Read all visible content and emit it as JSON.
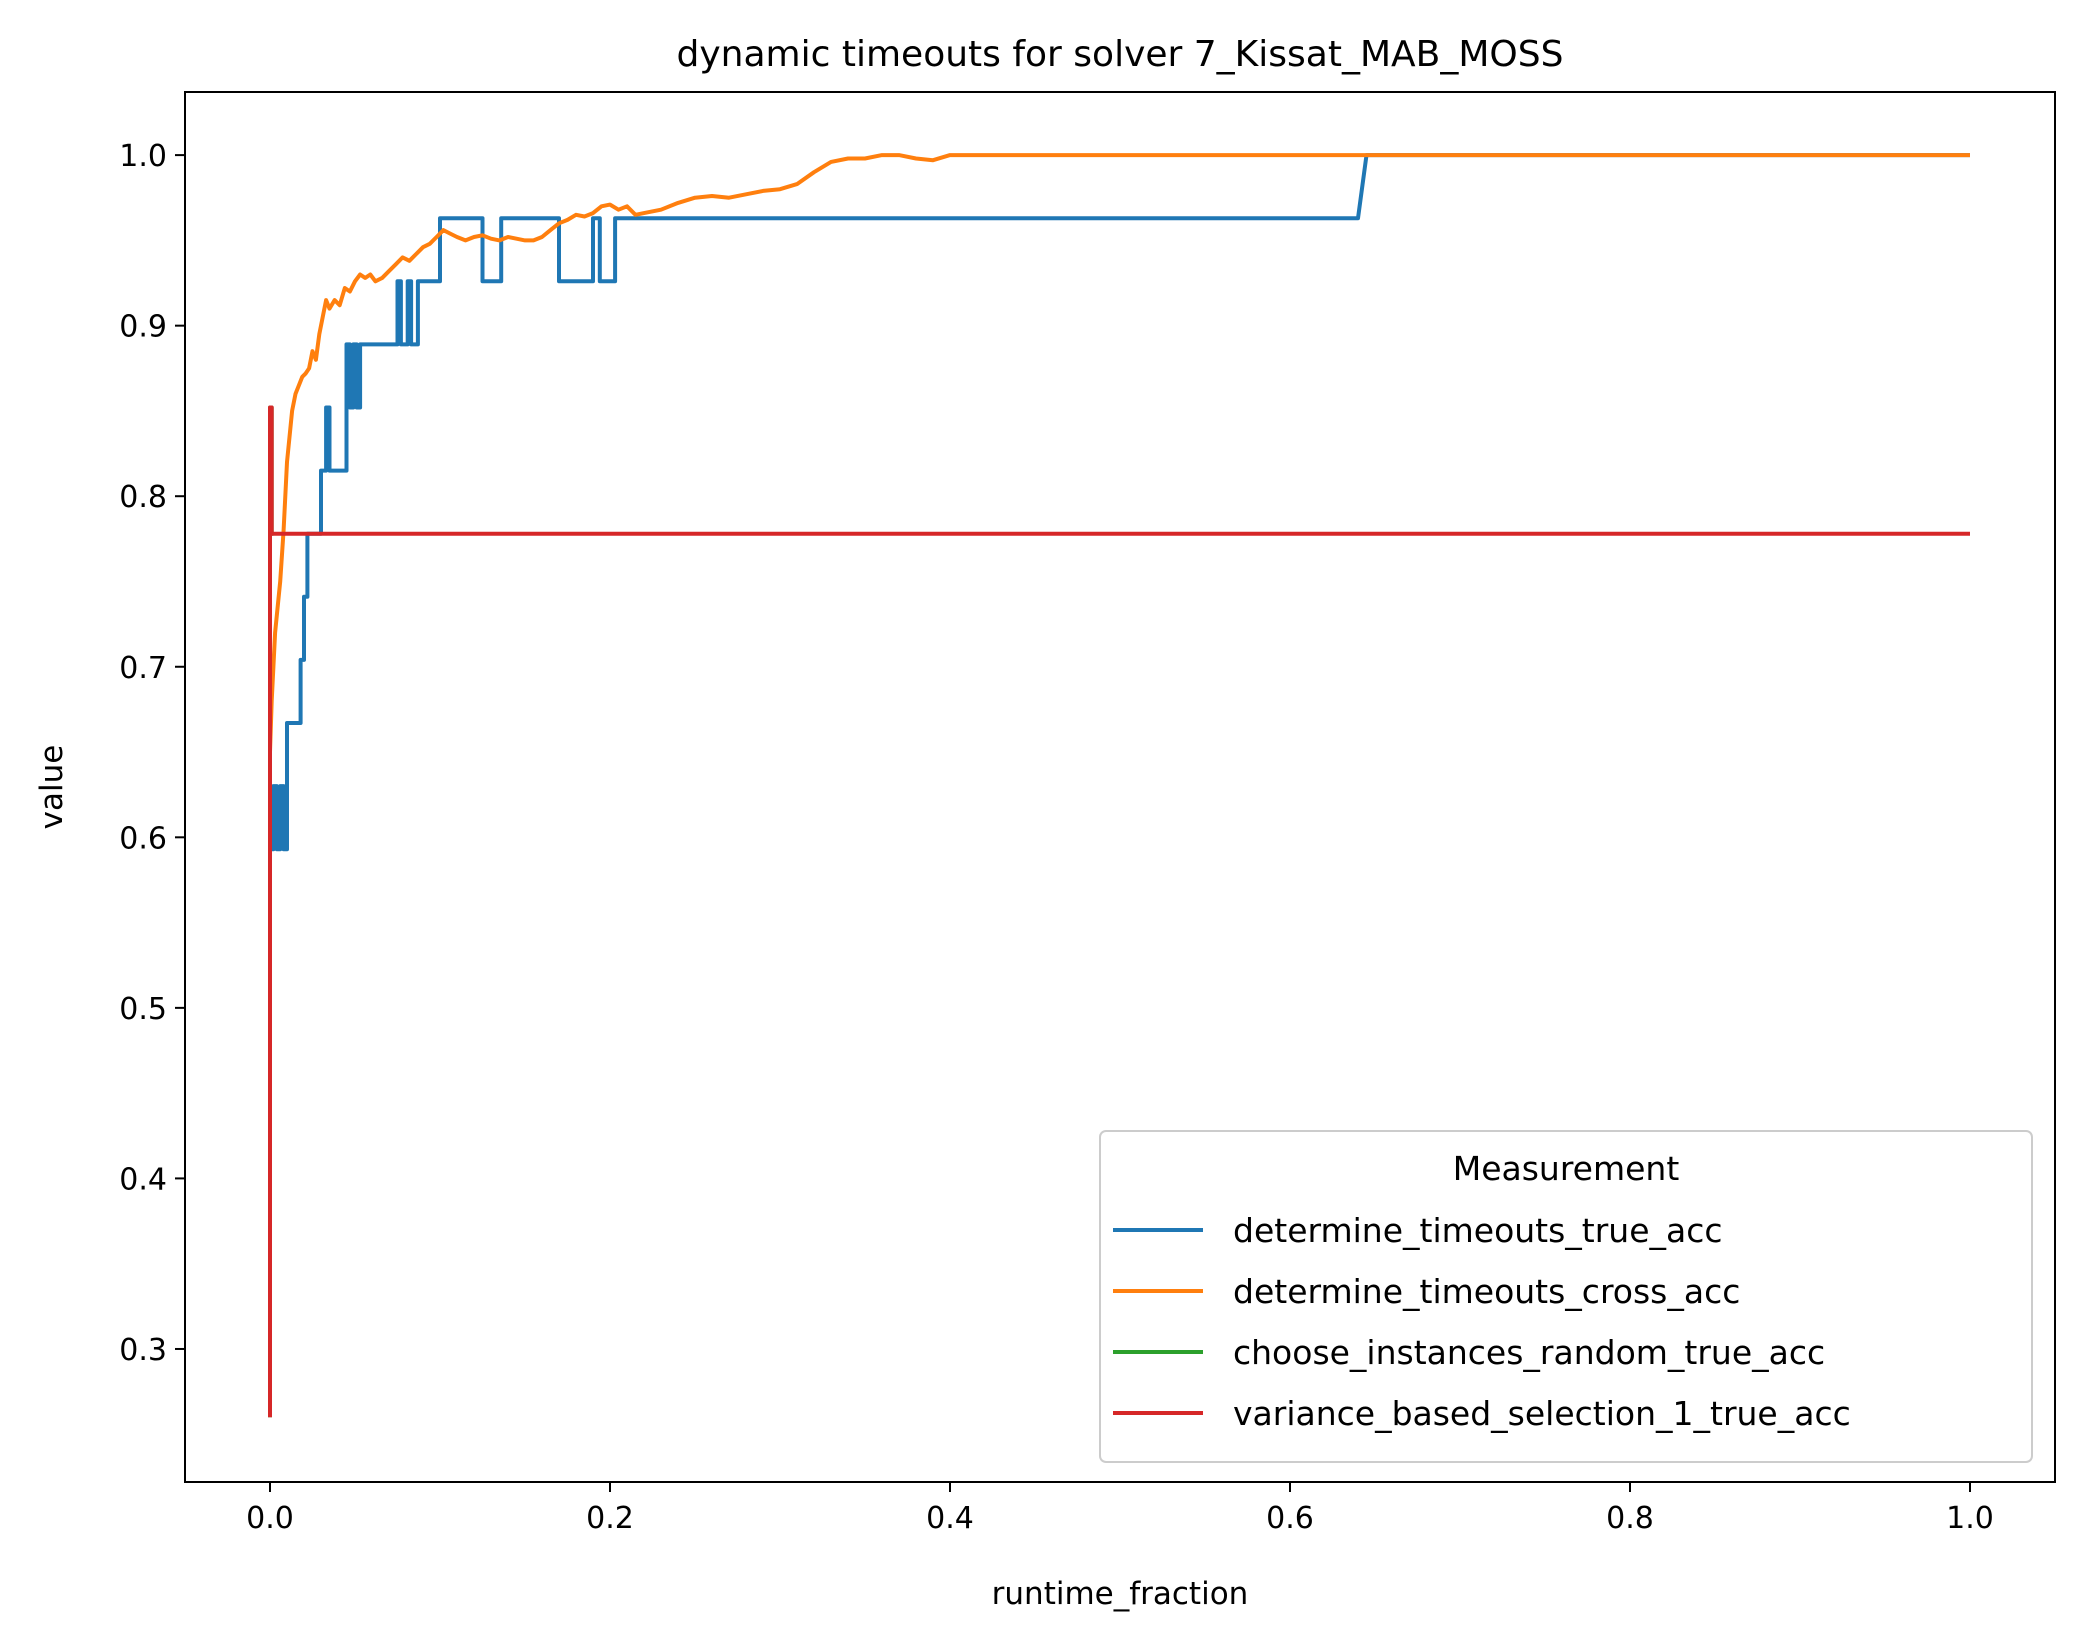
{
  "chart_data": {
    "type": "line",
    "title": "dynamic timeouts for solver 7_Kissat_MAB_MOSS",
    "xlabel": "runtime_fraction",
    "ylabel": "value",
    "xlim": [
      -0.05,
      1.05
    ],
    "ylim": [
      0.222,
      1.037
    ],
    "xticks": [
      0.0,
      0.2,
      0.4,
      0.6,
      0.8,
      1.0
    ],
    "xtick_labels": [
      "0.0",
      "0.2",
      "0.4",
      "0.6",
      "0.8",
      "1.0"
    ],
    "yticks": [
      0.3,
      0.4,
      0.5,
      0.6,
      0.7,
      0.8,
      0.9,
      1.0
    ],
    "ytick_labels": [
      "0.3",
      "0.4",
      "0.5",
      "0.6",
      "0.7",
      "0.8",
      "0.9",
      "1.0"
    ],
    "grid": false,
    "legend": {
      "title": "Measurement",
      "placement": "lower-right"
    },
    "series": [
      {
        "name": "determine_timeouts_true_acc",
        "color": "#1f77b4",
        "x": [
          0.0,
          0.0,
          0.002,
          0.002,
          0.004,
          0.004,
          0.006,
          0.006,
          0.008,
          0.008,
          0.01,
          0.01,
          0.012,
          0.012,
          0.018,
          0.018,
          0.02,
          0.02,
          0.022,
          0.022,
          0.026,
          0.026,
          0.03,
          0.03,
          0.033,
          0.033,
          0.035,
          0.035,
          0.045,
          0.045,
          0.047,
          0.047,
          0.049,
          0.049,
          0.051,
          0.051,
          0.053,
          0.053,
          0.055,
          0.055,
          0.075,
          0.075,
          0.077,
          0.077,
          0.081,
          0.081,
          0.083,
          0.083,
          0.087,
          0.087,
          0.091,
          0.091,
          0.1,
          0.1,
          0.125,
          0.125,
          0.127,
          0.127,
          0.136,
          0.136,
          0.138,
          0.138,
          0.17,
          0.17,
          0.19,
          0.19,
          0.194,
          0.194,
          0.198,
          0.198,
          0.203,
          0.203,
          0.207,
          0.207,
          0.64,
          0.645,
          1.0
        ],
        "y": [
          0.519,
          0.593,
          0.593,
          0.63,
          0.63,
          0.593,
          0.593,
          0.63,
          0.63,
          0.593,
          0.593,
          0.667,
          0.667,
          0.667,
          0.667,
          0.704,
          0.704,
          0.741,
          0.741,
          0.778,
          0.778,
          0.778,
          0.778,
          0.815,
          0.815,
          0.852,
          0.852,
          0.815,
          0.815,
          0.889,
          0.889,
          0.852,
          0.852,
          0.889,
          0.889,
          0.852,
          0.852,
          0.889,
          0.889,
          0.889,
          0.889,
          0.926,
          0.926,
          0.889,
          0.889,
          0.926,
          0.926,
          0.889,
          0.889,
          0.926,
          0.926,
          0.926,
          0.926,
          0.963,
          0.963,
          0.926,
          0.926,
          0.926,
          0.926,
          0.963,
          0.963,
          0.963,
          0.963,
          0.926,
          0.926,
          0.963,
          0.963,
          0.926,
          0.926,
          0.926,
          0.926,
          0.963,
          0.963,
          0.963,
          0.963,
          1.0,
          1.0
        ]
      },
      {
        "name": "determine_timeouts_cross_acc",
        "color": "#ff7f0e",
        "x": [
          0.0,
          0.001,
          0.002,
          0.003,
          0.004,
          0.006,
          0.008,
          0.009,
          0.01,
          0.012,
          0.013,
          0.015,
          0.017,
          0.019,
          0.021,
          0.023,
          0.025,
          0.027,
          0.029,
          0.031,
          0.033,
          0.035,
          0.038,
          0.041,
          0.044,
          0.047,
          0.05,
          0.053,
          0.056,
          0.059,
          0.062,
          0.066,
          0.07,
          0.074,
          0.078,
          0.082,
          0.086,
          0.09,
          0.094,
          0.098,
          0.102,
          0.106,
          0.11,
          0.115,
          0.12,
          0.125,
          0.13,
          0.135,
          0.14,
          0.145,
          0.15,
          0.155,
          0.16,
          0.165,
          0.17,
          0.175,
          0.18,
          0.185,
          0.19,
          0.195,
          0.2,
          0.205,
          0.21,
          0.215,
          0.22,
          0.23,
          0.24,
          0.25,
          0.26,
          0.27,
          0.28,
          0.29,
          0.3,
          0.31,
          0.32,
          0.33,
          0.34,
          0.35,
          0.36,
          0.37,
          0.38,
          0.39,
          0.4,
          0.45,
          0.5,
          0.6,
          0.7,
          0.8,
          0.9,
          1.0
        ],
        "y": [
          0.65,
          0.68,
          0.7,
          0.72,
          0.73,
          0.75,
          0.78,
          0.8,
          0.82,
          0.84,
          0.85,
          0.86,
          0.865,
          0.87,
          0.872,
          0.875,
          0.885,
          0.88,
          0.895,
          0.905,
          0.915,
          0.91,
          0.915,
          0.912,
          0.922,
          0.92,
          0.926,
          0.93,
          0.928,
          0.93,
          0.926,
          0.928,
          0.932,
          0.936,
          0.94,
          0.938,
          0.942,
          0.946,
          0.948,
          0.952,
          0.956,
          0.954,
          0.952,
          0.95,
          0.952,
          0.953,
          0.951,
          0.95,
          0.952,
          0.951,
          0.95,
          0.95,
          0.952,
          0.956,
          0.96,
          0.962,
          0.965,
          0.964,
          0.966,
          0.97,
          0.971,
          0.968,
          0.97,
          0.965,
          0.966,
          0.968,
          0.972,
          0.975,
          0.976,
          0.975,
          0.977,
          0.979,
          0.98,
          0.983,
          0.99,
          0.996,
          0.998,
          0.998,
          1.0,
          1.0,
          0.998,
          0.997,
          1.0,
          1.0,
          1.0,
          1.0,
          1.0,
          1.0,
          1.0,
          1.0
        ]
      },
      {
        "name": "choose_instances_random_true_acc",
        "color": "#2ca02c",
        "x": [
          0.0,
          0.0,
          0.001,
          0.001,
          0.002
        ],
        "y": [
          0.26,
          0.852,
          0.852,
          0.778,
          0.778
        ]
      },
      {
        "name": "variance_based_selection_1_true_acc",
        "color": "#d62728",
        "x": [
          0.0,
          0.0,
          0.001,
          0.001,
          0.002,
          1.0
        ],
        "y": [
          0.26,
          0.852,
          0.852,
          0.778,
          0.778,
          0.778
        ]
      }
    ]
  }
}
